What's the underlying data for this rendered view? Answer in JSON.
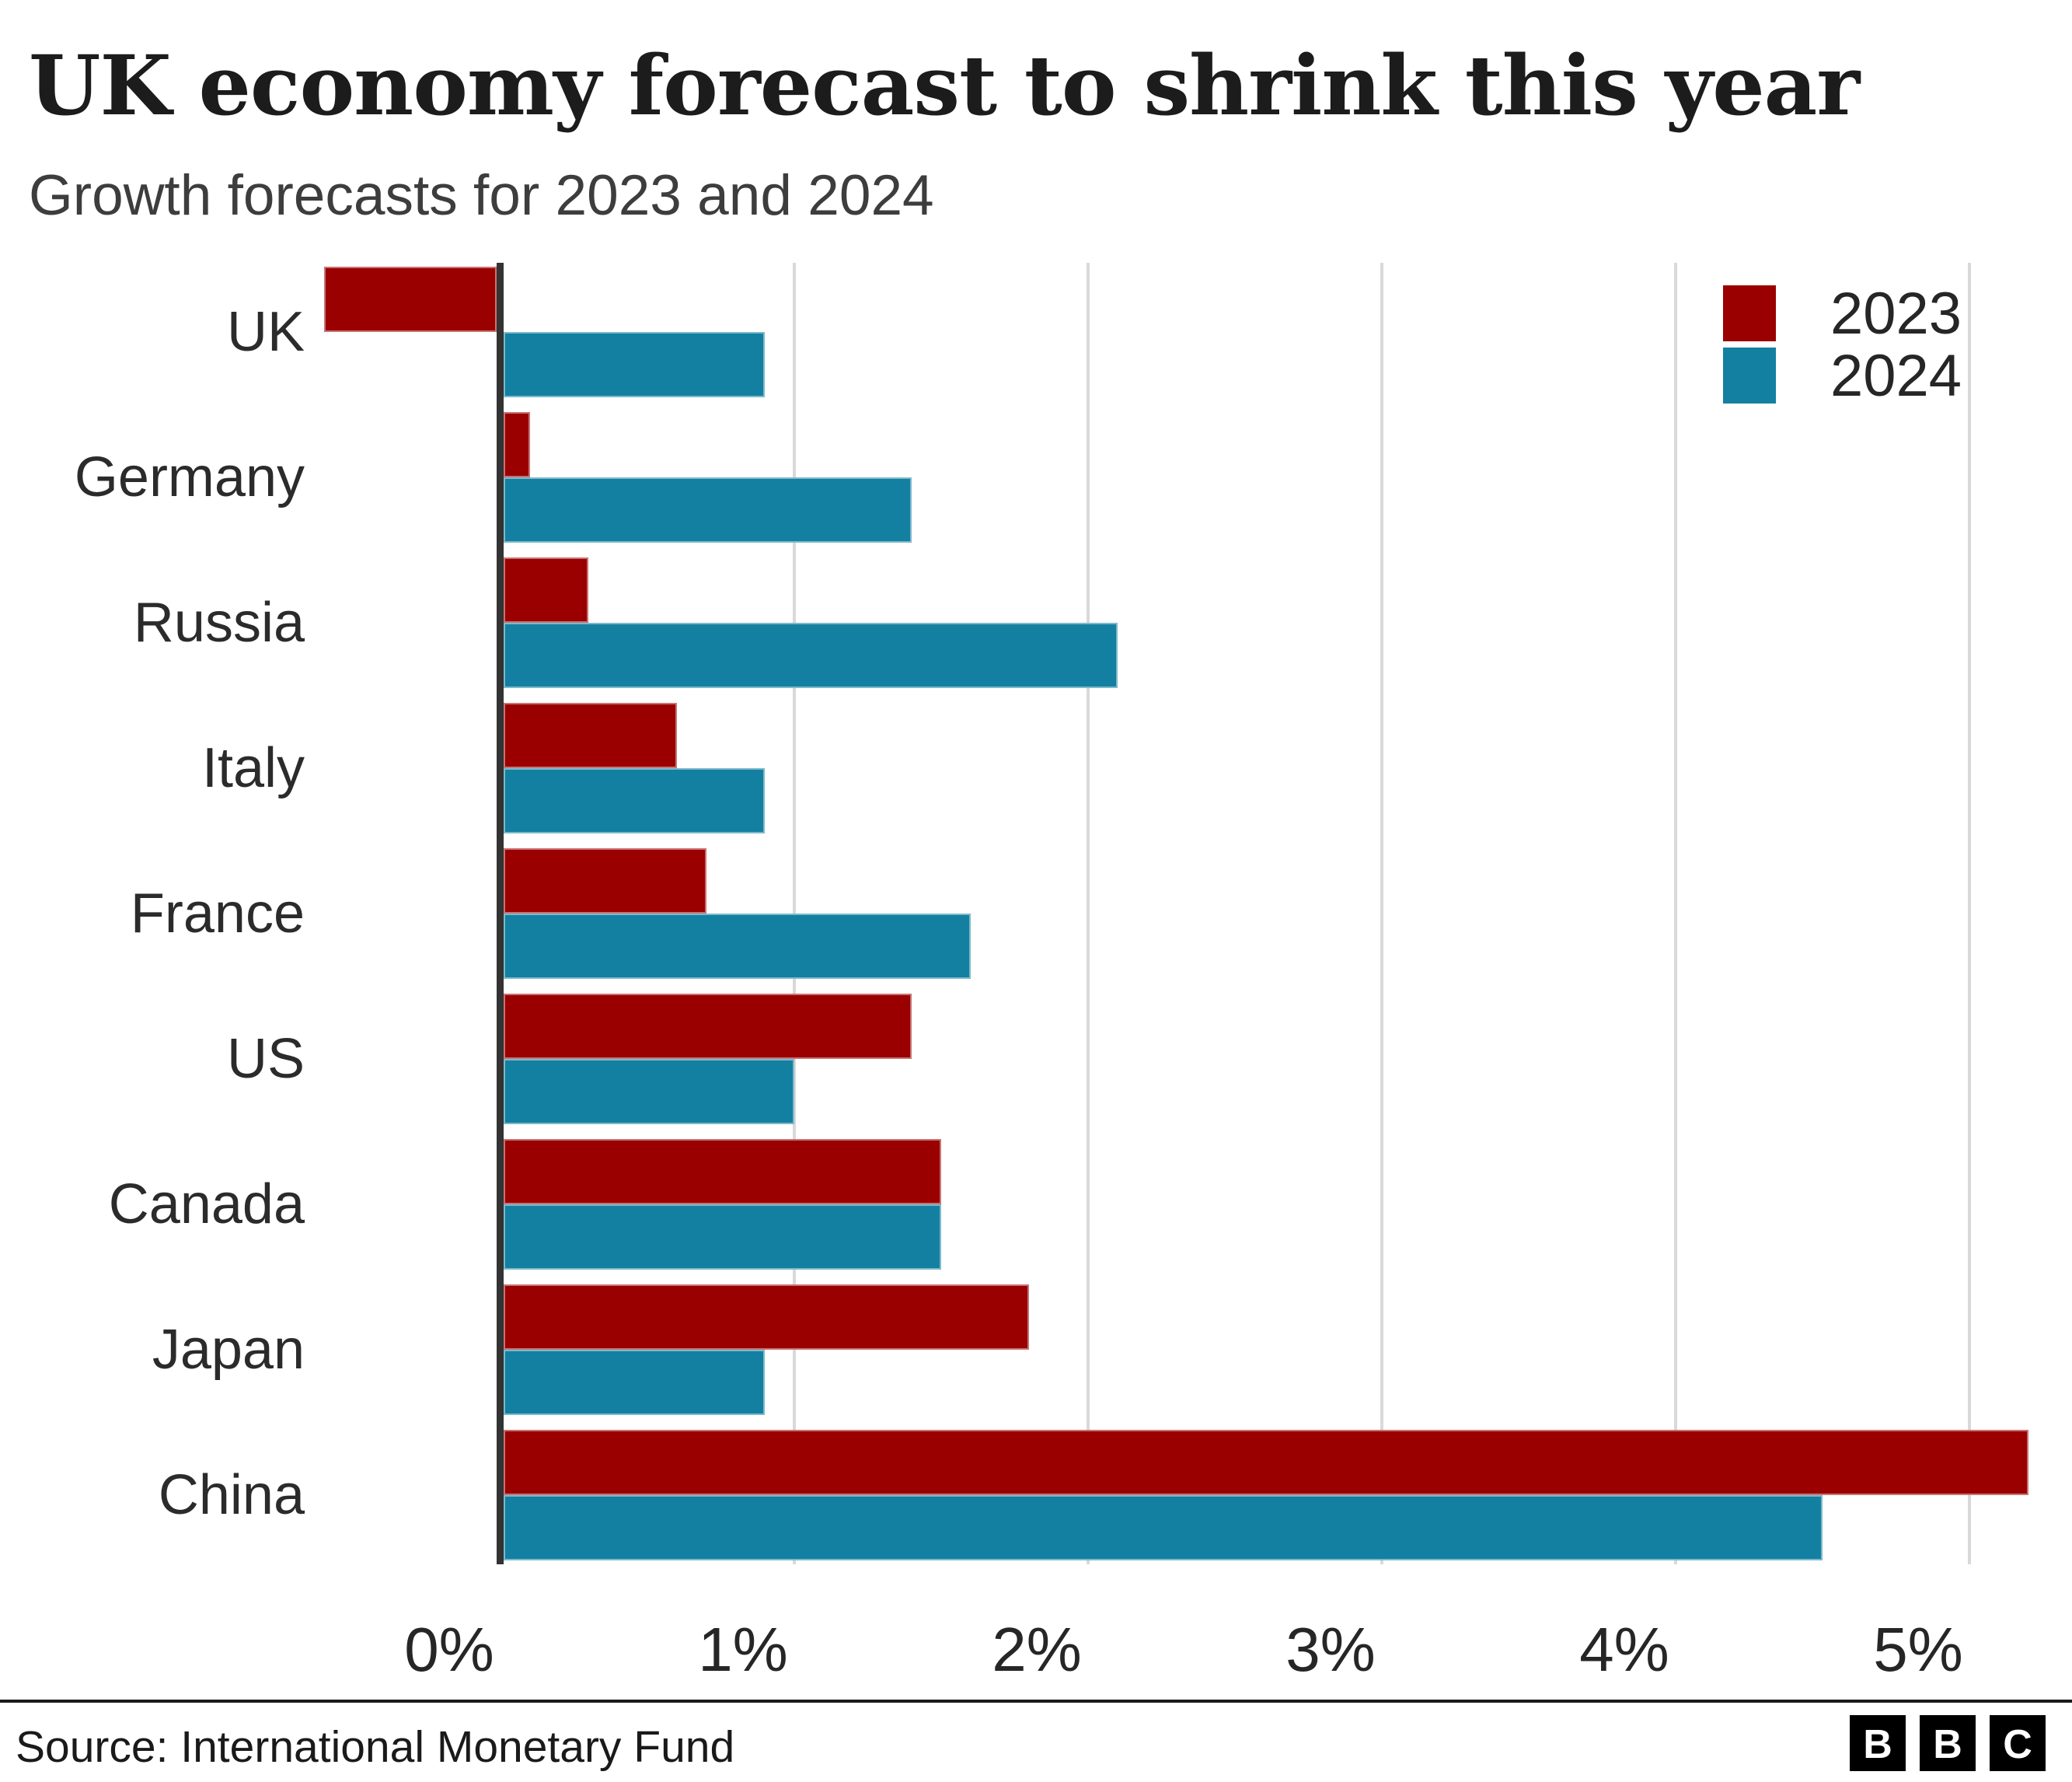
{
  "title": "UK economy forecast to shrink this year",
  "subtitle": "Growth forecasts for 2023 and 2024",
  "source": "Source: International Monetary Fund",
  "logo_letters": [
    "B",
    "B",
    "C"
  ],
  "colors": {
    "series_2023": "#9a0000",
    "series_2024": "#1380a1",
    "axis": "#333333",
    "gridline": "#d9d9d9",
    "text": "#262626"
  },
  "chart_data": {
    "type": "bar",
    "orientation": "horizontal",
    "title": "UK economy forecast to shrink this year",
    "subtitle": "Growth forecasts for 2023 and 2024",
    "categories": [
      "UK",
      "Germany",
      "Russia",
      "Italy",
      "France",
      "US",
      "Canada",
      "Japan",
      "China"
    ],
    "series": [
      {
        "name": "2023",
        "color": "#9a0000",
        "values": [
          -0.6,
          0.1,
          0.3,
          0.6,
          0.7,
          1.4,
          1.5,
          1.8,
          5.2
        ]
      },
      {
        "name": "2024",
        "color": "#1380a1",
        "values": [
          0.9,
          1.4,
          2.1,
          0.9,
          1.6,
          1.0,
          1.5,
          0.9,
          4.5
        ]
      }
    ],
    "x_ticks": [
      "0%",
      "1%",
      "2%",
      "3%",
      "4%",
      "5%"
    ],
    "x_tick_values": [
      0,
      1,
      2,
      3,
      4,
      5
    ],
    "xlim": [
      -0.65,
      5.35
    ],
    "unit": "%",
    "grid": "vertical",
    "legend_position": "top-right"
  }
}
